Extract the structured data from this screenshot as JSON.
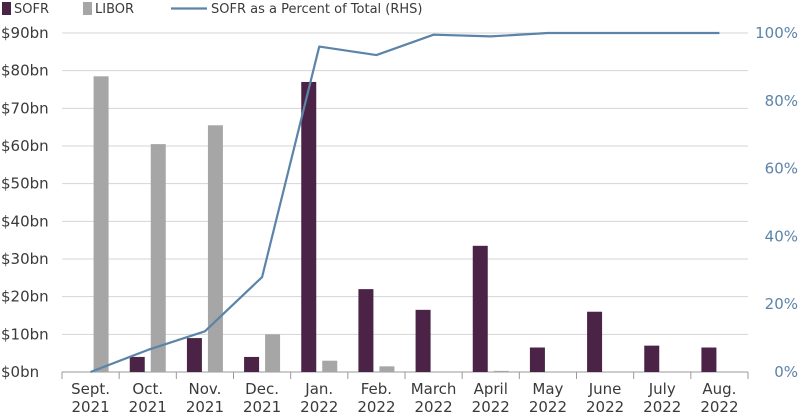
{
  "chart_data": {
    "type": "bar",
    "categories": [
      [
        "Sept.",
        "2021"
      ],
      [
        "Oct.",
        "2021"
      ],
      [
        "Nov.",
        "2021"
      ],
      [
        "Dec.",
        "2021"
      ],
      [
        "Jan.",
        "2022"
      ],
      [
        "Feb.",
        "2022"
      ],
      [
        "March",
        "2022"
      ],
      [
        "April",
        "2022"
      ],
      [
        "May",
        "2022"
      ],
      [
        "June",
        "2022"
      ],
      [
        "July",
        "2022"
      ],
      [
        "Aug.",
        "2022"
      ]
    ],
    "series": [
      {
        "name": "SOFR",
        "type": "bar",
        "axis": "left",
        "color": "#4a2346",
        "values": [
          0,
          4,
          9,
          4,
          77,
          22,
          16.5,
          33.5,
          6.5,
          16,
          7,
          6.5
        ]
      },
      {
        "name": "LIBOR",
        "type": "bar",
        "axis": "left",
        "color": "#a6a6a6",
        "values": [
          78.5,
          60.5,
          65.5,
          10,
          3,
          1.5,
          0,
          0.3,
          0,
          0,
          0,
          0
        ]
      },
      {
        "name": "SOFR as a Percent of Total (RHS)",
        "type": "line",
        "axis": "right",
        "color": "#5b84a8",
        "values": [
          0,
          6.5,
          12,
          28,
          96,
          93.5,
          99.5,
          99,
          100,
          100,
          100,
          100
        ]
      }
    ],
    "yleft": {
      "min": 0,
      "max": 90,
      "step": 10,
      "tick_labels": [
        "$0bn",
        "$10bn",
        "$20bn",
        "$30bn",
        "$40bn",
        "$50bn",
        "$60bn",
        "$70bn",
        "$80bn",
        "$90bn"
      ]
    },
    "yright": {
      "min": 0,
      "max": 100,
      "step": 20,
      "tick_labels": [
        "0%",
        "20%",
        "40%",
        "60%",
        "80%",
        "100%"
      ]
    },
    "grid": "horizontal",
    "legend_position": "top-left"
  }
}
